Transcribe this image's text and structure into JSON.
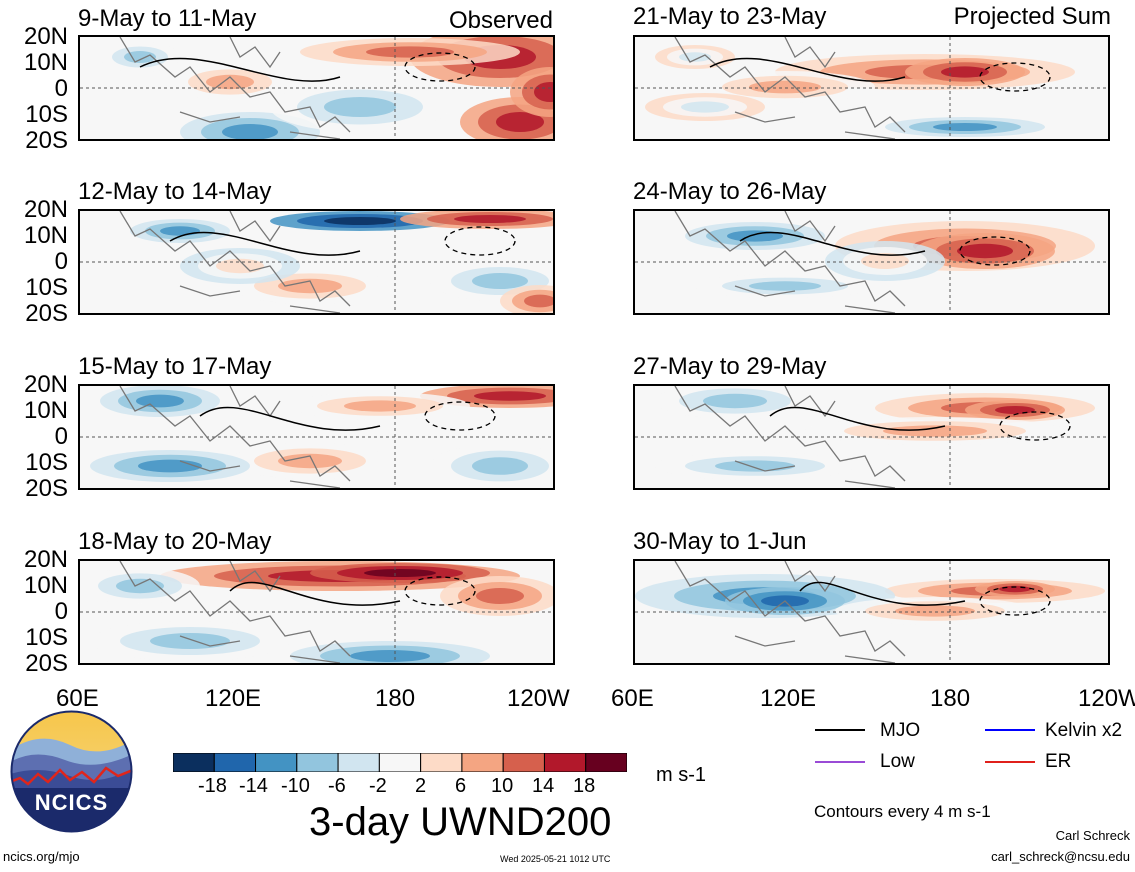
{
  "panels": [
    {
      "title": "9-May to 11-May",
      "label": "Observed"
    },
    {
      "title": "21-May to 23-May",
      "label": "Projected Sum"
    },
    {
      "title": "12-May to 14-May",
      "label": ""
    },
    {
      "title": "24-May to 26-May",
      "label": ""
    },
    {
      "title": "15-May to 17-May",
      "label": ""
    },
    {
      "title": "27-May to 29-May",
      "label": ""
    },
    {
      "title": "18-May to 20-May",
      "label": ""
    },
    {
      "title": "30-May to 1-Jun",
      "label": ""
    }
  ],
  "lat_ticks": [
    "20N",
    "10N",
    "0",
    "10S",
    "20S"
  ],
  "lon_ticks": [
    "60E",
    "120E",
    "180",
    "120W"
  ],
  "colorbar": {
    "labels": [
      "-18",
      "-14",
      "-10",
      "-6",
      "-2",
      "2",
      "6",
      "10",
      "14",
      "18"
    ],
    "colors": [
      "#0b2f5e",
      "#2066ac",
      "#4393c3",
      "#92c5de",
      "#d1e5f0",
      "#f7f7f7",
      "#fddbc7",
      "#f4a582",
      "#d6604d",
      "#b2182b",
      "#67001f"
    ],
    "units": "m s-1"
  },
  "title": "3-day UWND200",
  "logo_text": "NCICS",
  "legend": [
    {
      "label": "MJO",
      "color": "#000000"
    },
    {
      "label": "Kelvin x2",
      "color": "#0000ff"
    },
    {
      "label": "Low",
      "color": "#9a4bd6"
    },
    {
      "label": "ER",
      "color": "#e0201b"
    }
  ],
  "contour_note": "Contours every 4 m s-1",
  "author": "Carl Schreck",
  "email": "carl_schreck@ncsu.edu",
  "url": "ncics.org/mjo",
  "timestamp": "Wed 2025-05-21 1012 UTC"
}
